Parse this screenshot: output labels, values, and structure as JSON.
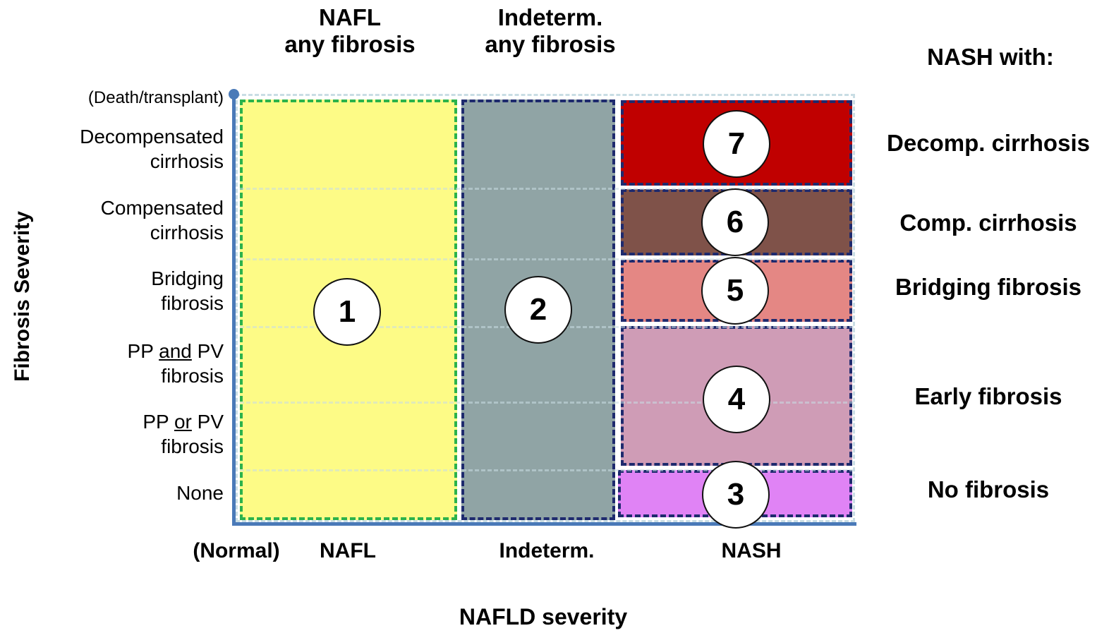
{
  "headers": {
    "nafl": [
      "NAFL",
      "any fibrosis"
    ],
    "indeterm": [
      "Indeterm.",
      "any fibrosis"
    ],
    "nash_with": "NASH with:"
  },
  "y_axis": {
    "title": "Fibrosis Severity",
    "top_label": "(Death/transplant)",
    "levels": [
      [
        "Decompensated",
        "cirrhosis"
      ],
      [
        "Compensated",
        "cirrhosis"
      ],
      [
        "Bridging",
        "fibrosis"
      ],
      [
        "PP and PV",
        "fibrosis"
      ],
      [
        "PP or PV",
        "fibrosis"
      ],
      [
        "None"
      ]
    ],
    "level_underlines": {
      "pp_and": "and",
      "pp_or": "or"
    }
  },
  "x_axis": {
    "title": "NAFLD severity",
    "labels": [
      "(Normal)",
      "NAFL",
      "Indeterm.",
      "NASH"
    ]
  },
  "regions": [
    {
      "number": "1",
      "category": "NAFL",
      "color": "#fdfb86",
      "border": "#2bb24c"
    },
    {
      "number": "2",
      "category": "Indeterm.",
      "color": "#90a4a5",
      "border": "#1e2a6e"
    },
    {
      "number": "3",
      "category": "NASH - No fibrosis",
      "color": "#e083f5",
      "border": "#1e2a6e"
    },
    {
      "number": "4",
      "category": "NASH - Early fibrosis",
      "color": "#cf9cb6",
      "border": "#1e2a6e"
    },
    {
      "number": "5",
      "category": "NASH - Bridging fibrosis",
      "color": "#e48784",
      "border": "#1e2a6e"
    },
    {
      "number": "6",
      "category": "NASH - Comp. cirrhosis",
      "color": "#7f5249",
      "border": "#1e2a6e"
    },
    {
      "number": "7",
      "category": "NASH - Decomp. cirrhosis",
      "color": "#c00000",
      "border": "#1e2a6e"
    }
  ],
  "nash_labels": [
    "Decomp. cirrhosis",
    "Comp. cirrhosis",
    "Bridging fibrosis",
    "Early fibrosis",
    "No fibrosis"
  ],
  "colors": {
    "axis": "#4a7ab8",
    "grid": "#c9dde4"
  }
}
